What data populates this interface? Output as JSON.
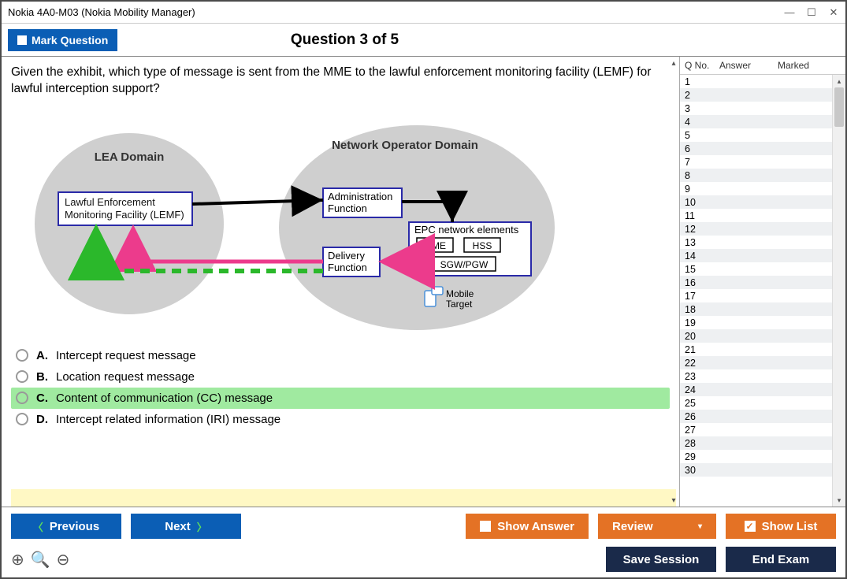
{
  "window": {
    "title": "Nokia 4A0-M03 (Nokia Mobility Manager)"
  },
  "topbar": {
    "mark_label": "Mark Question",
    "question_title": "Question 3 of 5"
  },
  "question": {
    "text": "Given the exhibit, which type of message is sent from the MME to the lawful enforcement monitoring facility (LEMF) for lawful interception support?"
  },
  "diagram": {
    "lea_domain_label": "LEA Domain",
    "lemf_label": "Lawful Enforcement\nMonitoring Facility (LEMF)",
    "nod_label": "Network Operator Domain",
    "admin_label": "Administration\nFunction",
    "delivery_label": "Delivery\nFunction",
    "epc_label": "EPC network elements",
    "mme_label": "MME",
    "hss_label": "HSS",
    "sgw_label": "SGW/PGW",
    "mobile_target_label": "Mobile\nTarget",
    "colors": {
      "circle_fill": "#cfcfcf",
      "box_border": "#2a2aa8",
      "box_fill": "#ffffff",
      "arrow_black": "#000000",
      "arrow_pink": "#ec3b8c",
      "arrow_green": "#2bb82b"
    }
  },
  "answers": {
    "a": {
      "label": "A.",
      "text": "Intercept request message"
    },
    "b": {
      "label": "B.",
      "text": "Location request message"
    },
    "c": {
      "label": "C.",
      "text": "Content of communication (CC) message"
    },
    "d": {
      "label": "D.",
      "text": "Intercept related information (IRI) message"
    },
    "selected": "c"
  },
  "sidebar": {
    "head_qno": "Q No.",
    "head_answer": "Answer",
    "head_marked": "Marked",
    "rows": [
      1,
      2,
      3,
      4,
      5,
      6,
      7,
      8,
      9,
      10,
      11,
      12,
      13,
      14,
      15,
      16,
      17,
      18,
      19,
      20,
      21,
      22,
      23,
      24,
      25,
      26,
      27,
      28,
      29,
      30
    ]
  },
  "buttons": {
    "previous": "Previous",
    "next": "Next",
    "show_answer": "Show Answer",
    "review": "Review",
    "show_list": "Show List",
    "save_session": "Save Session",
    "end_exam": "End Exam"
  }
}
